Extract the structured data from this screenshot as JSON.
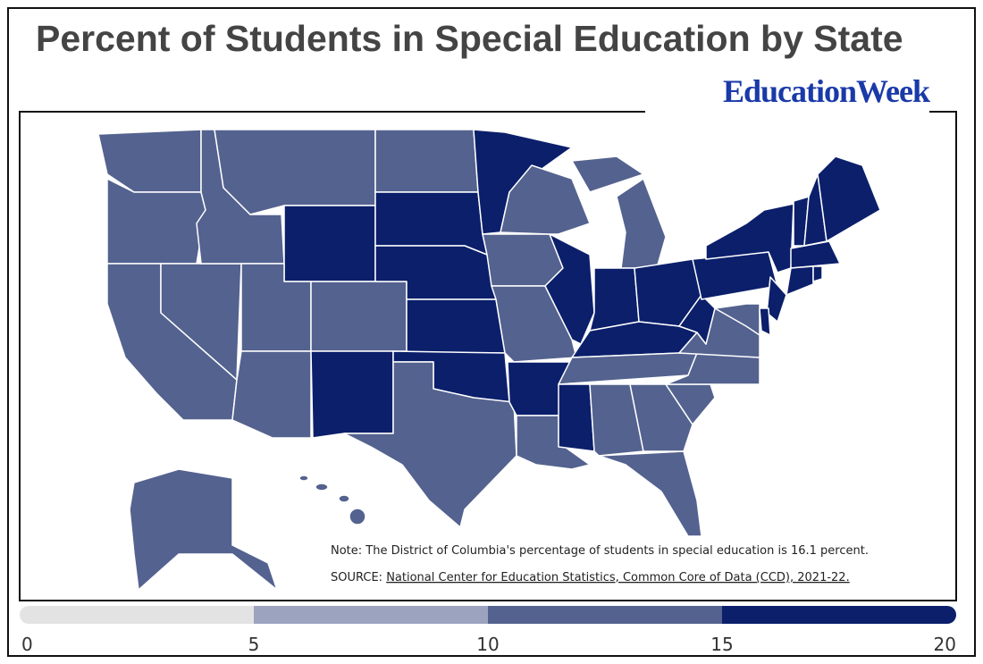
{
  "header": {
    "title": "Percent of Students in Special Education by State",
    "logo": "EducationWeek"
  },
  "notes": {
    "note": "Note: The District of Columbia's percentage of students in special education is 16.1 percent.",
    "source_prefix": "SOURCE:",
    "source_link": "National Center for Education Statistics, Common Core of Data (CCD), 2021-22."
  },
  "legend": {
    "bins": [
      0,
      5,
      10,
      15,
      20
    ],
    "colors": [
      "#e3e3e3",
      "#9ba3bf",
      "#54628f",
      "#0b1f6b"
    ]
  }
}
